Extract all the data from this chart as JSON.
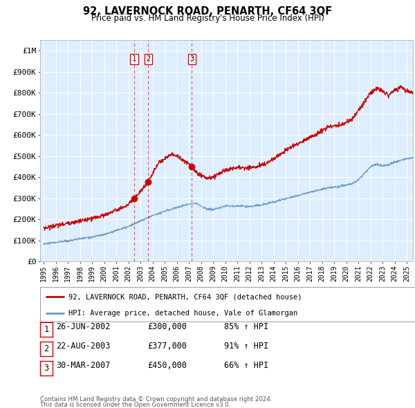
{
  "title": "92, LAVERNOCK ROAD, PENARTH, CF64 3QF",
  "subtitle": "Price paid vs. HM Land Registry's House Price Index (HPI)",
  "footer_line1": "Contains HM Land Registry data © Crown copyright and database right 2024.",
  "footer_line2": "This data is licensed under the Open Government Licence v3.0.",
  "legend_line1": "92, LAVERNOCK ROAD, PENARTH, CF64 3QF (detached house)",
  "legend_line2": "HPI: Average price, detached house, Vale of Glamorgan",
  "transactions": [
    {
      "num": 1,
      "date": "26-JUN-2002",
      "price": "£300,000",
      "pct": "85% ↑ HPI"
    },
    {
      "num": 2,
      "date": "22-AUG-2003",
      "price": "£377,000",
      "pct": "91% ↑ HPI"
    },
    {
      "num": 3,
      "date": "30-MAR-2007",
      "price": "£450,000",
      "pct": "66% ↑ HPI"
    }
  ],
  "transaction_dates_decimal": [
    2002.48,
    2003.64,
    2007.24
  ],
  "transaction_prices": [
    300000,
    377000,
    450000
  ],
  "red_line_color": "#cc0000",
  "blue_line_color": "#6699cc",
  "dashed_line_color": "#dd4444",
  "plot_bg": "#ddeeff",
  "grid_color": "#ffffff",
  "ylim": [
    0,
    1050000
  ],
  "xlim_start": 1994.7,
  "xlim_end": 2025.5,
  "yticks": [
    0,
    100000,
    200000,
    300000,
    400000,
    500000,
    600000,
    700000,
    800000,
    900000,
    1000000
  ],
  "ytick_labels": [
    "£0",
    "£100K",
    "£200K",
    "£300K",
    "£400K",
    "£500K",
    "£600K",
    "£700K",
    "£800K",
    "£900K",
    "£1M"
  ],
  "xticks": [
    1995,
    1996,
    1997,
    1998,
    1999,
    2000,
    2001,
    2002,
    2003,
    2004,
    2005,
    2006,
    2007,
    2008,
    2009,
    2010,
    2011,
    2012,
    2013,
    2014,
    2015,
    2016,
    2017,
    2018,
    2019,
    2020,
    2021,
    2022,
    2023,
    2024,
    2025
  ],
  "blue_anchors": [
    [
      1995.0,
      83000
    ],
    [
      1996.0,
      90000
    ],
    [
      1997.0,
      98000
    ],
    [
      1998.0,
      107000
    ],
    [
      1999.0,
      116000
    ],
    [
      2000.0,
      128000
    ],
    [
      2001.0,
      147000
    ],
    [
      2002.0,
      165000
    ],
    [
      2003.0,
      192000
    ],
    [
      2004.0,
      218000
    ],
    [
      2005.0,
      238000
    ],
    [
      2006.0,
      256000
    ],
    [
      2007.0,
      272000
    ],
    [
      2007.5,
      278000
    ],
    [
      2008.0,
      262000
    ],
    [
      2008.5,
      248000
    ],
    [
      2009.0,
      246000
    ],
    [
      2009.5,
      252000
    ],
    [
      2010.0,
      263000
    ],
    [
      2011.0,
      263000
    ],
    [
      2012.0,
      261000
    ],
    [
      2013.0,
      268000
    ],
    [
      2014.0,
      283000
    ],
    [
      2015.0,
      298000
    ],
    [
      2016.0,
      313000
    ],
    [
      2017.0,
      328000
    ],
    [
      2018.0,
      343000
    ],
    [
      2019.0,
      353000
    ],
    [
      2020.0,
      362000
    ],
    [
      2020.5,
      368000
    ],
    [
      2021.0,
      388000
    ],
    [
      2021.5,
      418000
    ],
    [
      2022.0,
      448000
    ],
    [
      2022.5,
      462000
    ],
    [
      2023.0,
      452000
    ],
    [
      2023.5,
      458000
    ],
    [
      2024.0,
      472000
    ],
    [
      2024.5,
      478000
    ],
    [
      2025.0,
      488000
    ],
    [
      2025.5,
      493000
    ]
  ],
  "red_anchors": [
    [
      1995.0,
      158000
    ],
    [
      1996.0,
      170000
    ],
    [
      1997.0,
      181000
    ],
    [
      1998.0,
      191000
    ],
    [
      1999.0,
      203000
    ],
    [
      2000.0,
      220000
    ],
    [
      2001.0,
      243000
    ],
    [
      2002.0,
      268000
    ],
    [
      2002.48,
      300000
    ],
    [
      2003.0,
      333000
    ],
    [
      2003.64,
      377000
    ],
    [
      2004.0,
      418000
    ],
    [
      2004.5,
      468000
    ],
    [
      2005.0,
      488000
    ],
    [
      2005.5,
      508000
    ],
    [
      2006.0,
      503000
    ],
    [
      2006.5,
      478000
    ],
    [
      2007.0,
      463000
    ],
    [
      2007.24,
      450000
    ],
    [
      2007.5,
      428000
    ],
    [
      2008.0,
      408000
    ],
    [
      2008.5,
      393000
    ],
    [
      2009.0,
      398000
    ],
    [
      2009.5,
      418000
    ],
    [
      2010.0,
      433000
    ],
    [
      2010.5,
      438000
    ],
    [
      2011.0,
      448000
    ],
    [
      2011.5,
      443000
    ],
    [
      2012.0,
      446000
    ],
    [
      2012.5,
      448000
    ],
    [
      2013.0,
      458000
    ],
    [
      2013.5,
      470000
    ],
    [
      2014.0,
      488000
    ],
    [
      2014.5,
      508000
    ],
    [
      2015.0,
      528000
    ],
    [
      2015.5,
      543000
    ],
    [
      2016.0,
      558000
    ],
    [
      2016.5,
      573000
    ],
    [
      2017.0,
      588000
    ],
    [
      2017.5,
      603000
    ],
    [
      2018.0,
      618000
    ],
    [
      2018.5,
      638000
    ],
    [
      2019.0,
      643000
    ],
    [
      2019.5,
      648000
    ],
    [
      2020.0,
      658000
    ],
    [
      2020.5,
      678000
    ],
    [
      2021.0,
      718000
    ],
    [
      2021.5,
      758000
    ],
    [
      2022.0,
      798000
    ],
    [
      2022.5,
      818000
    ],
    [
      2023.0,
      808000
    ],
    [
      2023.5,
      788000
    ],
    [
      2024.0,
      813000
    ],
    [
      2024.5,
      828000
    ],
    [
      2025.0,
      808000
    ],
    [
      2025.5,
      798000
    ]
  ]
}
